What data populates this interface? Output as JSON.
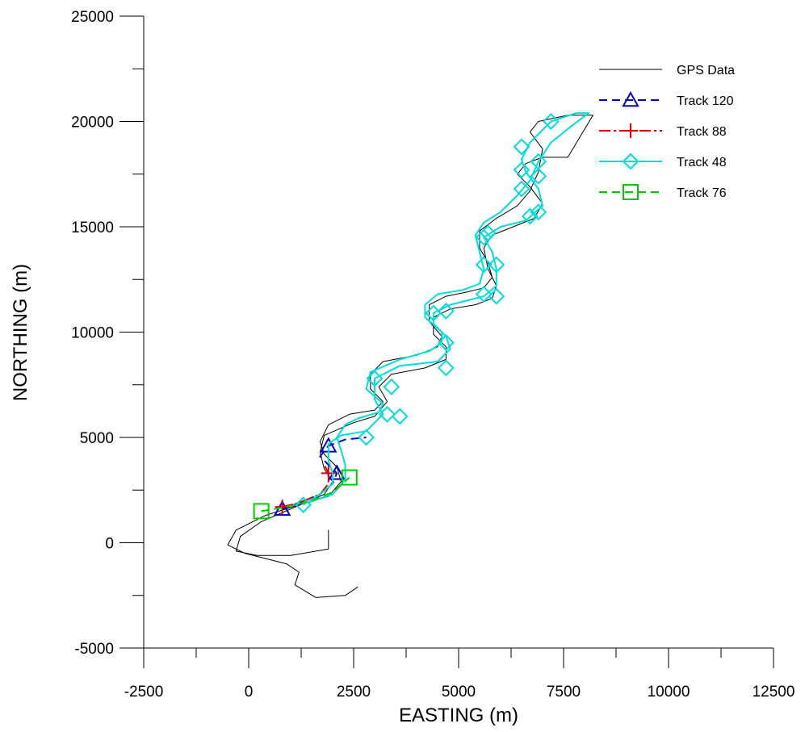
{
  "chart_data": {
    "type": "line",
    "xlabel": "EASTING (m)",
    "ylabel": "NORTHING (m)",
    "xlim": [
      -2500,
      12500
    ],
    "ylim": [
      -5000,
      25000
    ],
    "xticks": [
      -2500,
      0,
      2500,
      5000,
      7500,
      10000,
      12500
    ],
    "yticks": [
      -5000,
      0,
      5000,
      10000,
      15000,
      20000,
      25000
    ],
    "tick_labels": {
      "x": [
        "-2500",
        "0",
        "2500",
        "5000",
        "7500",
        "10000",
        "12500"
      ],
      "y": [
        "-5000",
        "0",
        "5000",
        "10000",
        "15000",
        "20000",
        "25000"
      ]
    },
    "grid": false,
    "legend_position": "top-right",
    "series": [
      {
        "name": "GPS Data",
        "color": "#000000",
        "dash": "solid",
        "marker": "none",
        "points": [
          [
            1900,
            600
          ],
          [
            1900,
            -300
          ],
          [
            1000,
            -600
          ],
          [
            200,
            -600
          ],
          [
            -300,
            -400
          ],
          [
            -200,
            300
          ],
          [
            300,
            1000
          ],
          [
            1000,
            1600
          ],
          [
            1800,
            2300
          ],
          [
            2000,
            2900
          ],
          [
            1800,
            3500
          ],
          [
            1700,
            4300
          ],
          [
            1800,
            5100
          ],
          [
            2500,
            5700
          ],
          [
            3000,
            6000
          ],
          [
            3300,
            6700
          ],
          [
            3100,
            7400
          ],
          [
            3400,
            8000
          ],
          [
            4200,
            8300
          ],
          [
            4700,
            8700
          ],
          [
            4700,
            9300
          ],
          [
            4400,
            9900
          ],
          [
            4400,
            10700
          ],
          [
            4800,
            11100
          ],
          [
            5400,
            11300
          ],
          [
            5800,
            11600
          ],
          [
            5900,
            12200
          ],
          [
            5700,
            13000
          ],
          [
            5600,
            14000
          ],
          [
            5800,
            14600
          ],
          [
            6300,
            15000
          ],
          [
            6800,
            15400
          ],
          [
            7000,
            16100
          ],
          [
            6700,
            16900
          ],
          [
            6400,
            17500
          ],
          [
            6600,
            18000
          ],
          [
            7000,
            18300
          ],
          [
            7600,
            18300
          ],
          [
            8200,
            20300
          ],
          [
            7600,
            20300
          ],
          [
            6900,
            20000
          ],
          [
            6700,
            19500
          ],
          [
            7000,
            18700
          ],
          [
            6900,
            17600
          ],
          [
            6700,
            16700
          ],
          [
            6400,
            16000
          ],
          [
            5900,
            15400
          ],
          [
            5500,
            14800
          ],
          [
            5500,
            14000
          ],
          [
            5700,
            13300
          ],
          [
            5800,
            12600
          ],
          [
            5600,
            12100
          ],
          [
            5200,
            11900
          ],
          [
            4700,
            11700
          ],
          [
            4300,
            11300
          ],
          [
            4300,
            10500
          ],
          [
            4600,
            9800
          ],
          [
            4500,
            9300
          ],
          [
            4000,
            8900
          ],
          [
            3200,
            8600
          ],
          [
            2900,
            8000
          ],
          [
            2900,
            7300
          ],
          [
            3200,
            6700
          ],
          [
            3000,
            6300
          ],
          [
            2400,
            6100
          ],
          [
            1900,
            5600
          ],
          [
            1700,
            4800
          ],
          [
            1800,
            4200
          ],
          [
            2100,
            3600
          ],
          [
            2200,
            2900
          ],
          [
            1900,
            2200
          ],
          [
            1200,
            1800
          ],
          [
            400,
            1300
          ],
          [
            -300,
            600
          ],
          [
            -500,
            -100
          ],
          [
            -100,
            -500
          ],
          [
            900,
            -1000
          ],
          [
            1200,
            -1400
          ],
          [
            1100,
            -2000
          ],
          [
            1600,
            -2600
          ],
          [
            2300,
            -2500
          ],
          [
            2600,
            -2100
          ]
        ]
      },
      {
        "name": "Track 120",
        "color": "#0000cc",
        "dash": "10,6",
        "marker": "triangle",
        "points": [
          [
            800,
            1600
          ],
          [
            1200,
            1900
          ],
          [
            1700,
            2300
          ],
          [
            2000,
            2800
          ],
          [
            2100,
            3300
          ],
          [
            1900,
            3700
          ],
          [
            1700,
            4100
          ],
          [
            1900,
            4600
          ],
          [
            2300,
            4900
          ],
          [
            2800,
            5000
          ]
        ],
        "marker_points": [
          [
            800,
            1600
          ],
          [
            2100,
            3300
          ],
          [
            1900,
            4600
          ]
        ]
      },
      {
        "name": "Track 88",
        "color": "#dd0000",
        "dash": "14,4,3,4",
        "marker": "plus",
        "points": [
          [
            800,
            1700
          ],
          [
            1200,
            1900
          ],
          [
            1700,
            2300
          ],
          [
            1900,
            2800
          ],
          [
            1900,
            3300
          ],
          [
            1800,
            3700
          ]
        ],
        "marker_points": [
          [
            800,
            1700
          ],
          [
            1900,
            3300
          ]
        ]
      },
      {
        "name": "Track 48",
        "color": "#00dddd",
        "dash": "solid",
        "marker": "diamond",
        "points": [
          [
            1300,
            1800
          ],
          [
            1700,
            2300
          ],
          [
            2000,
            2800
          ],
          [
            2000,
            3300
          ],
          [
            1900,
            3900
          ],
          [
            1900,
            4700
          ],
          [
            2200,
            5100
          ],
          [
            2800,
            5300
          ],
          [
            3200,
            6100
          ],
          [
            3000,
            6800
          ],
          [
            3000,
            7800
          ],
          [
            3600,
            8400
          ],
          [
            4500,
            8600
          ],
          [
            4800,
            9200
          ],
          [
            4700,
            9800
          ],
          [
            4400,
            10400
          ],
          [
            4400,
            10900
          ],
          [
            4800,
            11300
          ],
          [
            5600,
            11700
          ],
          [
            5900,
            12200
          ],
          [
            5900,
            13000
          ],
          [
            5800,
            13800
          ],
          [
            5600,
            14500
          ],
          [
            6000,
            15000
          ],
          [
            6600,
            15300
          ],
          [
            7000,
            16000
          ],
          [
            6900,
            16800
          ],
          [
            6600,
            17600
          ],
          [
            6500,
            18200
          ],
          [
            6700,
            19000
          ],
          [
            7200,
            20000
          ],
          [
            7800,
            20400
          ],
          [
            8100,
            20400
          ],
          [
            7700,
            19800
          ],
          [
            7200,
            19000
          ],
          [
            6900,
            18100
          ],
          [
            6700,
            17200
          ],
          [
            6400,
            16500
          ],
          [
            6000,
            15700
          ],
          [
            5600,
            15200
          ],
          [
            5400,
            14600
          ],
          [
            5500,
            13800
          ],
          [
            5600,
            13000
          ],
          [
            5500,
            12300
          ],
          [
            5100,
            12000
          ],
          [
            4500,
            11800
          ],
          [
            4200,
            11300
          ],
          [
            4200,
            10700
          ],
          [
            4600,
            10000
          ],
          [
            4600,
            9500
          ],
          [
            4300,
            9100
          ],
          [
            3600,
            8700
          ],
          [
            2900,
            8100
          ],
          [
            2800,
            7300
          ],
          [
            3200,
            6600
          ],
          [
            3100,
            6200
          ],
          [
            2600,
            5900
          ],
          [
            2300,
            5600
          ],
          [
            2100,
            5000
          ],
          [
            2200,
            4400
          ],
          [
            2300,
            3700
          ],
          [
            2300,
            3000
          ],
          [
            2000,
            2300
          ],
          [
            1400,
            1900
          ]
        ],
        "marker_points": [
          [
            1300,
            1800
          ],
          [
            2800,
            5000
          ],
          [
            3300,
            6100
          ],
          [
            3600,
            6000
          ],
          [
            3000,
            7800
          ],
          [
            3400,
            7400
          ],
          [
            4700,
            8300
          ],
          [
            4700,
            9500
          ],
          [
            4700,
            11000
          ],
          [
            4400,
            10900
          ],
          [
            5600,
            11800
          ],
          [
            5900,
            11700
          ],
          [
            5600,
            13200
          ],
          [
            5900,
            13200
          ],
          [
            5600,
            14500
          ],
          [
            5700,
            14700
          ],
          [
            6700,
            15500
          ],
          [
            6900,
            15700
          ],
          [
            6500,
            16800
          ],
          [
            6900,
            17400
          ],
          [
            6500,
            17700
          ],
          [
            6900,
            18100
          ],
          [
            6500,
            18800
          ],
          [
            7200,
            20000
          ]
        ]
      },
      {
        "name": "Track 76",
        "color": "#00cc00",
        "dash": "10,6",
        "marker": "square",
        "points": [
          [
            300,
            1500
          ],
          [
            900,
            1700
          ],
          [
            1500,
            2000
          ],
          [
            2000,
            2400
          ],
          [
            2400,
            3100
          ]
        ],
        "marker_points": [
          [
            300,
            1500
          ],
          [
            2400,
            3100
          ]
        ]
      }
    ]
  }
}
